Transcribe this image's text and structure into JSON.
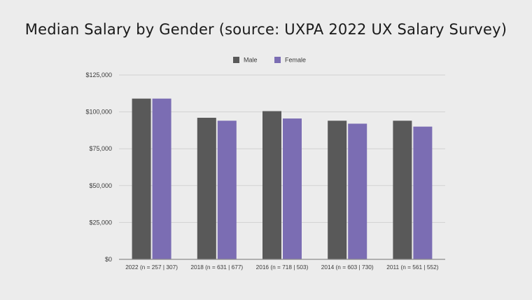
{
  "page": {
    "title": "Median Salary by Gender (source: UXPA 2022 UX Salary Survey)"
  },
  "chart_data": {
    "type": "bar",
    "title": "Median Salary by Gender (source: UXPA 2022 UX Salary Survey)",
    "xlabel": "",
    "ylabel": "",
    "categories": [
      "2022 (n = 257 | 307)",
      "2018 (n = 631 | 677)",
      "2016 (n = 718 | 503)",
      "2014 (n = 603 | 730)",
      "2011 (n = 561 | 552)"
    ],
    "series": [
      {
        "name": "Male",
        "color": "#595959",
        "values": [
          109000,
          96000,
          100500,
          94000,
          94000
        ]
      },
      {
        "name": "Female",
        "color": "#7b6db3",
        "values": [
          109000,
          94000,
          95500,
          92000,
          90000
        ]
      }
    ],
    "ylim": [
      0,
      125000
    ],
    "yticks": [
      0,
      25000,
      50000,
      75000,
      100000,
      125000
    ],
    "ytick_labels": [
      "$0",
      "$25,000",
      "$50,000",
      "$75,000",
      "$100,000",
      "$125,000"
    ],
    "grid": true,
    "legend_position": "top-center",
    "colors": {
      "grid": "#d2d2d2",
      "axis": "#8c8c8c",
      "background": "#ececec"
    }
  }
}
